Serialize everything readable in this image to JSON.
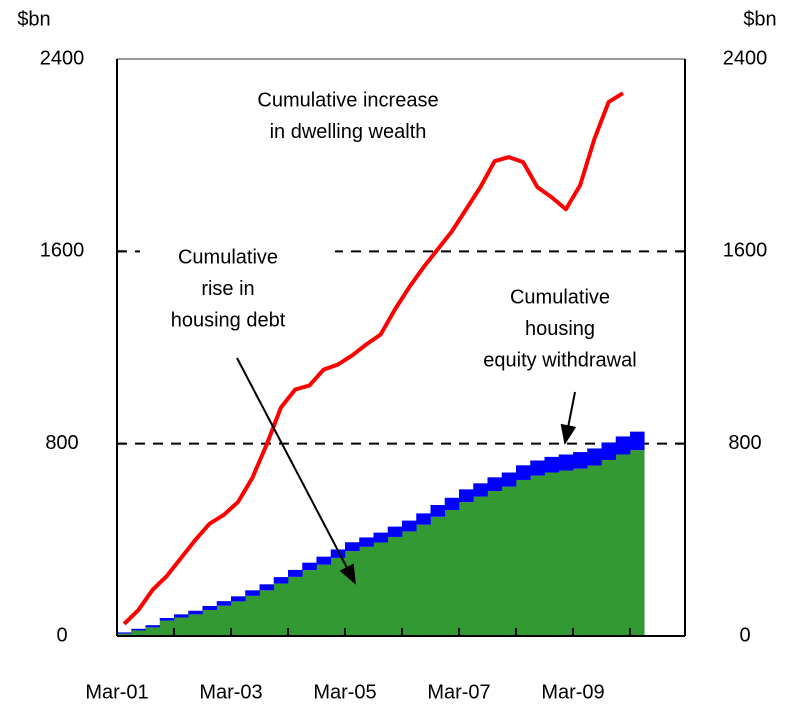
{
  "chart_data": {
    "type": "stacked-bar-line",
    "ylabel": "$bn",
    "y2label": "$bn",
    "categories": [
      "Mar-01",
      null,
      null,
      null,
      null,
      null,
      null,
      null,
      "Mar-03",
      null,
      null,
      null,
      null,
      null,
      null,
      null,
      "Mar-05",
      null,
      null,
      null,
      null,
      null,
      null,
      null,
      "Mar-07",
      null,
      null,
      null,
      null,
      null,
      null,
      null,
      "Mar-09",
      null,
      null,
      null,
      null
    ],
    "series": [
      {
        "kind": "bar",
        "color": "#339933",
        "values": [
          10,
          23,
          36,
          64,
          77,
          90,
          108,
          126,
          144,
          167,
          190,
          218,
          246,
          274,
          297,
          325,
          353,
          371,
          389,
          412,
          435,
          463,
          496,
          524,
          557,
          580,
          603,
          621,
          649,
          667,
          680,
          688,
          696,
          709,
          732,
          755,
          773
        ]
      },
      {
        "kind": "bar",
        "color": "#0000ff",
        "values": [
          5,
          7,
          9,
          11,
          13,
          15,
          17,
          19,
          21,
          23,
          25,
          27,
          29,
          31,
          33,
          35,
          37,
          39,
          41,
          43,
          45,
          47,
          49,
          51,
          53,
          55,
          57,
          59,
          61,
          63,
          65,
          67,
          69,
          71,
          73,
          75,
          77
        ]
      },
      {
        "kind": "line",
        "color": "#ff0000",
        "values": [
          50,
          108,
          192,
          250,
          325,
          400,
          467,
          504,
          558,
          658,
          796,
          950,
          1025,
          1042,
          1108,
          1129,
          1167,
          1213,
          1254,
          1358,
          1450,
          1533,
          1608,
          1683,
          1775,
          1867,
          1975,
          1992,
          1971,
          1867,
          1825,
          1775,
          1875,
          2067,
          2221,
          2258,
          null
        ]
      }
    ],
    "ylim": [
      0,
      2400
    ],
    "yticks": [
      0,
      800,
      1600,
      2400
    ],
    "y2lim": [
      0,
      2400
    ],
    "y2ticks": [
      0,
      800,
      1600,
      2400
    ],
    "grid": true,
    "annotations": [
      {
        "lines": [
          "Cumulative increase",
          "in dwelling wealth"
        ]
      },
      {
        "lines": [
          "Cumulative",
          "rise in",
          "housing debt"
        ]
      },
      {
        "lines": [
          "Cumulative",
          "housing",
          "equity withdrawal"
        ]
      }
    ]
  }
}
